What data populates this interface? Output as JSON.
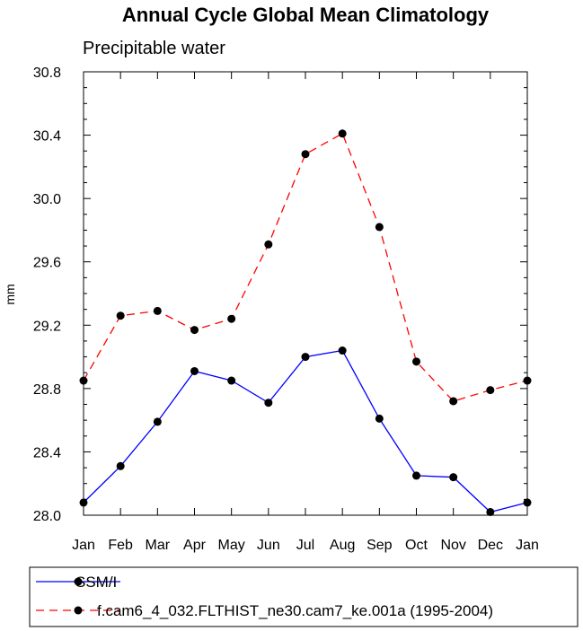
{
  "chart_data": {
    "type": "line",
    "title": "Annual Cycle Global Mean Climatology",
    "subtitle": "Precipitable water",
    "ylabel": "mm",
    "xlabel": "",
    "categories": [
      "Jan",
      "Feb",
      "Mar",
      "Apr",
      "May",
      "Jun",
      "Jul",
      "Aug",
      "Sep",
      "Oct",
      "Nov",
      "Dec",
      "Jan"
    ],
    "ylim": [
      28.0,
      30.8
    ],
    "yticks": [
      "28.0",
      "28.4",
      "28.8",
      "29.2",
      "29.6",
      "30.0",
      "30.4",
      "30.8"
    ],
    "grid": false,
    "legend_position": "bottom",
    "series": [
      {
        "name": "SSM/I",
        "color": "#0000ff",
        "line_style": "solid",
        "marker": "filled-circle",
        "values": [
          28.08,
          28.31,
          28.59,
          28.91,
          28.85,
          28.71,
          29.0,
          29.04,
          28.61,
          28.25,
          28.24,
          28.02,
          28.08
        ]
      },
      {
        "name": "f.cam6_4_032.FLTHIST_ne30.cam7_ke.001a (1995-2004)",
        "color": "#ff0000",
        "line_style": "dashed",
        "marker": "filled-circle",
        "values": [
          28.85,
          29.26,
          29.29,
          29.17,
          29.24,
          29.71,
          30.28,
          30.41,
          29.82,
          28.97,
          28.72,
          28.79,
          28.85
        ]
      }
    ]
  }
}
